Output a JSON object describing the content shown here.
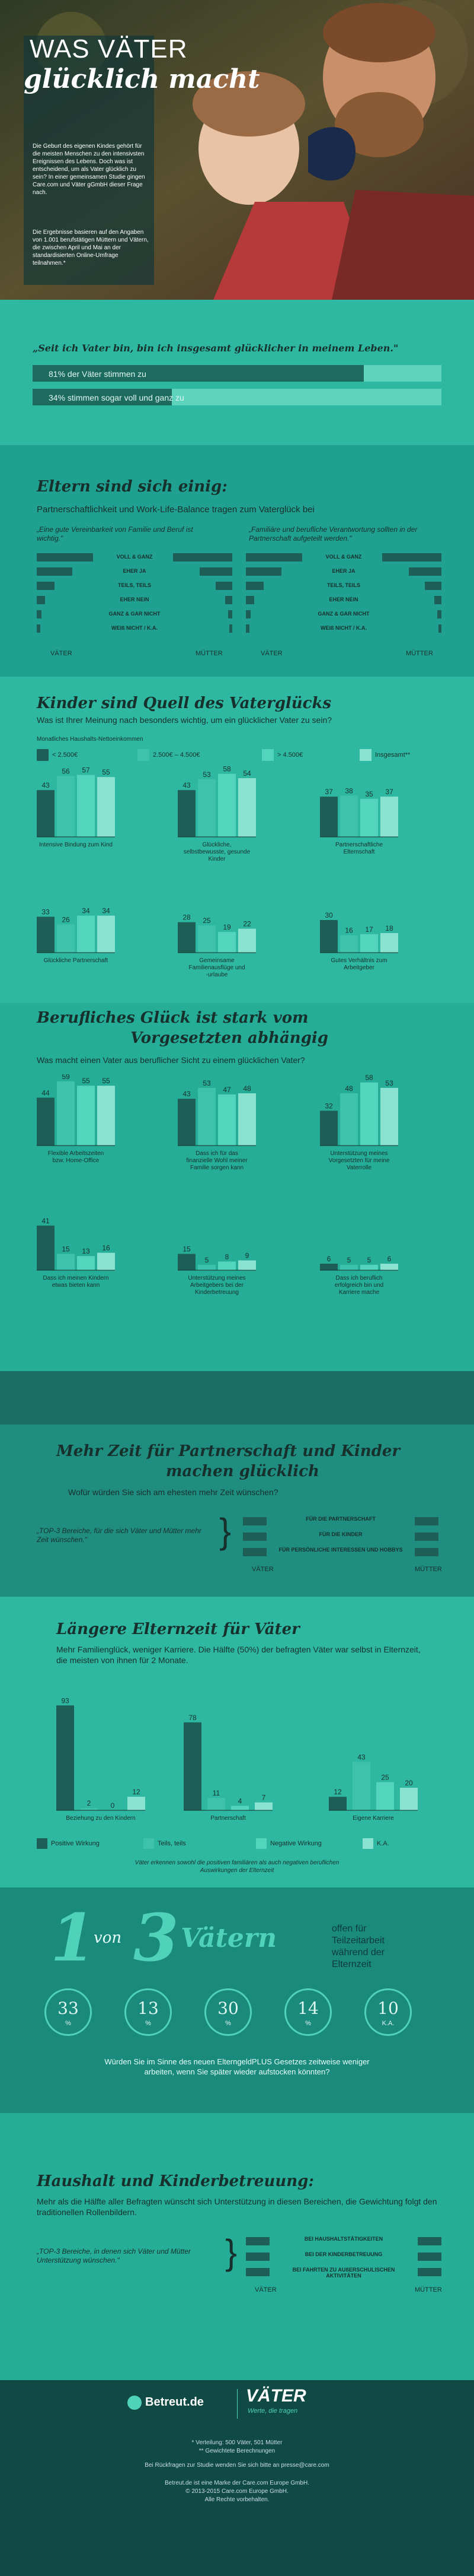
{
  "colors": {
    "dark": "#1d5f56",
    "mid": "#2eb8a2",
    "light": "#52d4bd",
    "pale": "#8ae3d1",
    "navy": "#0f3a3c"
  },
  "hero": {
    "title_line1": "WAS VÄTER",
    "title_line2": "glücklich macht",
    "intro": "Die Geburt des eigenen Kindes gehört für die meisten Menschen zu den intensivsten Ereignissen des Lebens. Doch was ist entscheidend, um als Vater glücklich zu sein? In einer gemeinsamen Studie gingen Care.com und Väter gGmbH dieser Frage nach.",
    "intro2": "Die Ergebnisse basieren auf den Angaben von 1.001 berufstätigen Müttern und Vätern, die zwischen April und Mai an der standardisierten Online-Umfrage teilnahmen.*"
  },
  "quote_section": {
    "quote": "„Seit ich Vater bin, bin ich insgesamt glücklicher in meinem Leben.\"",
    "bar1_label": "81% der Väter stimmen zu",
    "bar1_value": 81,
    "bar2_label": "34% stimmen sogar voll und ganz zu",
    "bar2_value": 34
  },
  "agree": {
    "title": "Eltern sind sich einig:",
    "subtitle": "Partnerschaftlichkeit und Work-Life-Balance tragen zum Vaterglück bei",
    "left_q": "„Eine gute Vereinbarkeit von Familie und Beruf ist wichtig.\"",
    "right_q": "„Familiäre und berufliche Verantwortung sollten in der Partnerschaft aufgeteilt werden.\"",
    "legend": [
      "VOLL & GANZ",
      "EHER JA",
      "TEILS, TEILS",
      "EHER NEIN",
      "GANZ & GAR NICHT",
      "WEIß NICHT / K.A."
    ],
    "col_labels": [
      "VÄTER",
      "MÜTTER"
    ]
  },
  "children": {
    "title": "Kinder sind Quell des Vaterglücks",
    "subtitle": "Was ist Ihrer Meinung nach besonders wichtig, um ein glücklicher Vater zu sein?",
    "income_label": "Monatliches Haushalts-Nettoeinkommen",
    "legend": [
      "< 2.500€",
      "2.500€ – 4.500€",
      "> 4.500€",
      "Insgesamt**"
    ]
  },
  "job": {
    "title_line1": "Berufliches Glück ist stark vom",
    "title_line2": "Vorgesetzten abhängig",
    "subtitle": "Was macht einen Vater aus beruflicher Sicht zu einem glücklichen Vater?"
  },
  "time": {
    "title_line1": "Mehr Zeit für Partnerschaft und Kinder",
    "title_line2": "machen glücklich",
    "subtitle": "Wofür würden Sie sich am ehesten mehr Zeit wünschen?",
    "quote": "„TOP-3 Bereiche, für die sich Väter und Mütter mehr Zeit wünschen.\"",
    "items": [
      "FÜR DIE PARTNERSCHAFT",
      "FÜR DIE KINDER",
      "FÜR PERSÖNLICHE INTERESSEN UND HOBBYS"
    ],
    "col_labels": [
      "VÄTER",
      "MÜTTER"
    ]
  },
  "leave": {
    "title": "Längere Elternzeit für Väter",
    "text": "Mehr Familienglück, weniger Karriere. Die Hälfte (50%) der befragten Väter war selbst in Elternzeit, die meisten von ihnen für 2 Monate.",
    "legend": [
      "Positive Wirkung",
      "Teils, teils",
      "Negative Wirkung",
      "K.A."
    ],
    "note": "Väter erkennen sowohl die positiven familiären als auch negativen beruflichen Auswirkungen der Elternzeit"
  },
  "one_of_three": {
    "big1": "1",
    "von": "von",
    "big3": "3",
    "vaetern": "Vätern",
    "side": "offen für Teilzeitarbeit während der Elternzeit",
    "circles": [
      {
        "num": "33",
        "unit": "%"
      },
      {
        "num": "13",
        "unit": "%"
      },
      {
        "num": "30",
        "unit": "%"
      },
      {
        "num": "14",
        "unit": "%"
      },
      {
        "num": "10",
        "unit": "K.A."
      }
    ],
    "question": "Würden Sie im Sinne des neuen ElterngeldPLUS Gesetzes zeitweise weniger arbeiten, wenn Sie später wieder aufstocken könnten?"
  },
  "household": {
    "title": "Haushalt und Kinderbetreuung:",
    "text": "Mehr als die Hälfte aller Befragten wünscht sich Unterstützung in diesen Bereichen, die Gewichtung folgt den traditionellen Rollenbildern.",
    "quote": "„TOP-3 Bereiche, in denen sich Väter und Mütter Unterstützung wünschen.\"",
    "items": [
      "BEI HAUSHALTSTÄTIGKEITEN",
      "BEI DER KINDERBETREUUNG",
      "BEI FAHRTEN ZU AUßERSCHULISCHEN AKTIVITÄTEN"
    ],
    "col_labels": [
      "VÄTER",
      "MÜTTER"
    ]
  },
  "footer": {
    "logo1": "Betreut.de",
    "logo2": "VÄTER",
    "logo2_tag": "Werte, die tragen",
    "note1": "* Verteilung: 500 Väter, 501 Mütter",
    "note2": "** Gewichtete Berechnungen",
    "contact": "Bei Rückfragen zur Studie wenden Sie sich bitte an presse@care.com",
    "legal1": "Betreut.de ist eine Marke der Care.com Europe GmbH.",
    "legal2": "© 2013-2015 Care.com Europe GmbH.",
    "legal3": "Alle Rechte vorbehalten."
  },
  "chart_data": [
    {
      "type": "bar",
      "title": "Kinder sind Quell des Vaterglücks",
      "categories": [
        "Intensive Bindung zum Kind",
        "Glückliche, selbstbewusste, gesunde Kinder",
        "Partnerschaftliche Elternschaft",
        "Glückliche Partnerschaft",
        "Gemeinsame Familienausflüge und -urlaube",
        "Gutes Verhältnis zum Arbeitgeber"
      ],
      "series": [
        {
          "name": "< 2.500€",
          "values": [
            43,
            43,
            37,
            33,
            28,
            30
          ]
        },
        {
          "name": "2.500€ – 4.500€",
          "values": [
            56,
            53,
            38,
            26,
            25,
            16
          ]
        },
        {
          "name": "> 4.500€",
          "values": [
            57,
            58,
            35,
            34,
            19,
            17
          ]
        },
        {
          "name": "Insgesamt**",
          "values": [
            55,
            54,
            37,
            34,
            22,
            18
          ]
        }
      ]
    },
    {
      "type": "bar",
      "title": "Berufliches Glück ist stark vom Vorgesetzten abhängig",
      "categories": [
        "Flexible Arbeitszeiten bzw. Home-Office",
        "Dass ich für das finanzielle Wohl meiner Familie sorgen kann",
        "Unterstützung meines Vorgesetzten für meine Vaterrolle",
        "Dass ich meinen Kindern etwas bieten kann",
        "Unterstützung meines Arbeitgebers bei der Kinderbetreuung",
        "Dass ich beruflich erfolgreich bin und Karriere mache"
      ],
      "series": [
        {
          "name": "< 2.500€",
          "values": [
            44,
            43,
            32,
            41,
            15,
            6
          ]
        },
        {
          "name": "2.500€ – 4.500€",
          "values": [
            59,
            53,
            48,
            15,
            5,
            5
          ]
        },
        {
          "name": "> 4.500€",
          "values": [
            55,
            47,
            58,
            13,
            8,
            5
          ]
        },
        {
          "name": "Insgesamt**",
          "values": [
            55,
            48,
            53,
            16,
            9,
            6
          ]
        }
      ]
    },
    {
      "type": "bar",
      "title": "Längere Elternzeit für Väter",
      "categories": [
        "Beziehung zu den Kindern",
        "Partnerschaft",
        "Eigene Karriere"
      ],
      "series": [
        {
          "name": "Positive Wirkung",
          "values": [
            93,
            78,
            12
          ]
        },
        {
          "name": "Teils, teils",
          "values": [
            2,
            11,
            43
          ]
        },
        {
          "name": "Negative Wirkung",
          "values": [
            0,
            4,
            25
          ]
        },
        {
          "name": "K.A.",
          "values": [
            12,
            7,
            20
          ]
        }
      ]
    }
  ]
}
